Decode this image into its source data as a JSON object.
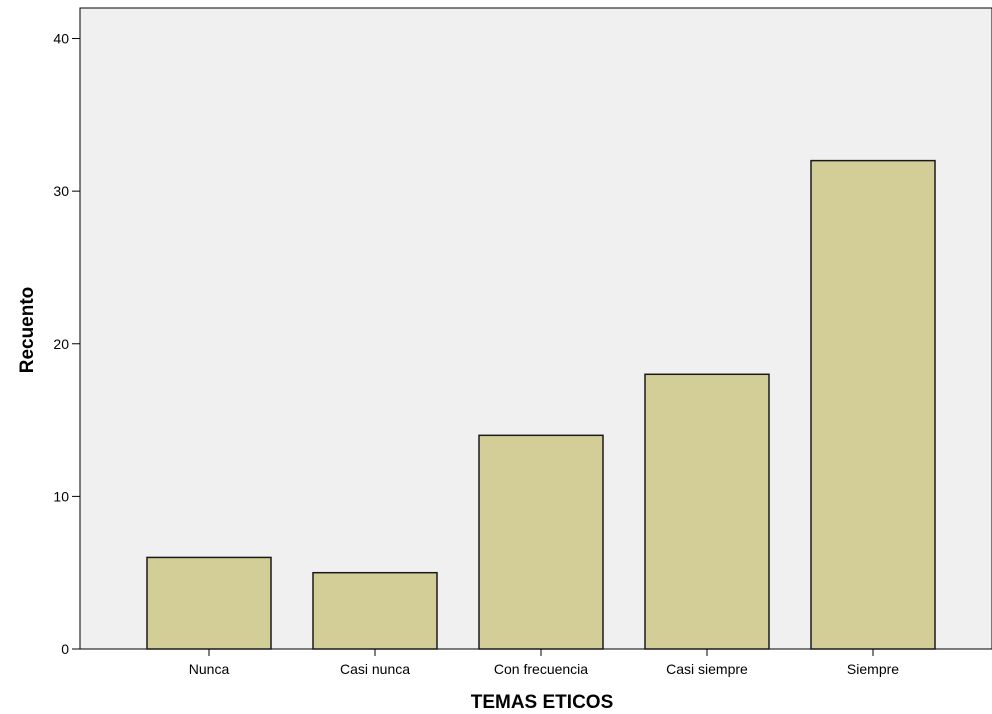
{
  "chart_data": {
    "type": "bar",
    "title": "",
    "xlabel": "TEMAS ETICOS",
    "ylabel": "Recuento",
    "categories": [
      "Nunca",
      "Casi nunca",
      "Con frecuencia",
      "Casi siempre",
      "Siempre"
    ],
    "values": [
      6,
      5,
      14,
      18,
      32
    ],
    "ylim": [
      0,
      42
    ],
    "yticks": [
      0,
      10,
      20,
      30,
      40
    ],
    "grid": false,
    "legend": "none",
    "colors": {
      "plot_background": "#f0f0f0",
      "bar_fill": "#d3ce97",
      "bar_stroke": "#1a1a1a",
      "axis": "#000000"
    }
  }
}
